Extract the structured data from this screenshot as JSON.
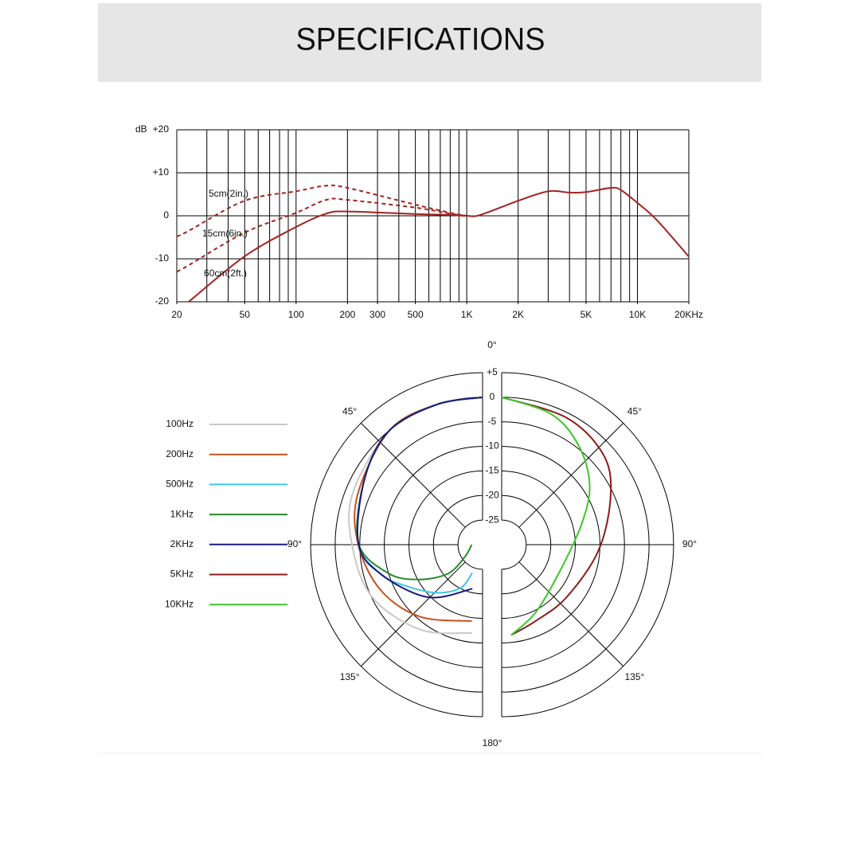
{
  "header": {
    "title": "SPECIFICATIONS"
  },
  "chart_data": [
    {
      "type": "line",
      "y_label": "dB",
      "xscale": "log",
      "x": [
        20,
        23.5,
        50,
        100,
        150,
        200,
        500,
        800,
        1000,
        1200,
        2000,
        3000,
        4000,
        5000,
        7000,
        8000,
        10000,
        13000,
        20000
      ],
      "series": [
        {
          "name": "5cm(2in.)",
          "color": "#a52222",
          "linestyle": "dashed",
          "values": [
            -4.8,
            -3.5,
            3.5,
            5.7,
            7,
            6.5,
            2.6,
            0.7,
            0,
            null,
            null,
            null,
            null,
            null,
            null,
            null,
            null,
            null,
            null
          ]
        },
        {
          "name": "15cm(6in.)",
          "color": "#a52222",
          "linestyle": "dashed",
          "values": [
            -13,
            -11.5,
            -3.9,
            0.7,
            3.7,
            3.7,
            1.9,
            0.5,
            0,
            null,
            null,
            null,
            null,
            null,
            null,
            null,
            null,
            null,
            null
          ]
        },
        {
          "name": "60cm(2ft.)",
          "color": "#a52222",
          "linestyle": "solid",
          "values": [
            null,
            -20,
            -9.4,
            -2.6,
            0.5,
            1,
            0.4,
            0.2,
            0,
            0.2,
            3.5,
            5.7,
            5.4,
            5.5,
            6.5,
            6,
            3,
            -1,
            -9.5
          ]
        }
      ],
      "xlim": [
        20,
        20000
      ],
      "ylim": [
        -20,
        20
      ],
      "xticks": [
        20,
        50,
        100,
        200,
        300,
        500,
        {
          "value": 1000,
          "label": "1K"
        },
        {
          "value": 2000,
          "label": "2K"
        },
        {
          "value": 5000,
          "label": "5K"
        },
        {
          "value": 10000,
          "label": "10K"
        },
        {
          "value": 20000,
          "label": "20KHz"
        }
      ],
      "xgrid": [
        20,
        30,
        40,
        50,
        60,
        70,
        80,
        90,
        100,
        200,
        300,
        400,
        500,
        600,
        700,
        800,
        900,
        1000,
        2000,
        3000,
        4000,
        5000,
        6000,
        7000,
        8000,
        9000,
        10000,
        20000
      ],
      "yticks": [
        {
          "value": 20,
          "label": "+20"
        },
        {
          "value": 10,
          "label": "+10"
        },
        0,
        -10,
        -20
      ],
      "grid": true
    },
    {
      "type": "polar",
      "legend": "left",
      "rlim": [
        -30,
        5
      ],
      "rticks": [
        {
          "value": 5,
          "label": "+5"
        },
        0,
        -5,
        -10,
        -15,
        -20,
        -25
      ],
      "thetaticks": [
        {
          "value": 0,
          "label": "0°"
        },
        {
          "value": -45,
          "label": "45°"
        },
        {
          "value": 45,
          "label": "45°"
        },
        {
          "value": -90,
          "label": "90°"
        },
        {
          "value": 90,
          "label": "90°"
        },
        {
          "value": -135,
          "label": "135°"
        },
        {
          "value": 135,
          "label": "135°"
        },
        {
          "value": 180,
          "label": "180°"
        }
      ],
      "series": [
        {
          "name": "100Hz",
          "color": "#c8c8c8",
          "theta": [
            0,
            -18,
            -39,
            -69,
            -92,
            -116,
            -144,
            -173
          ],
          "values": [
            0,
            0,
            0,
            -1.6,
            -3.6,
            -5.2,
            -8.6,
            -11.9
          ]
        },
        {
          "name": "200Hz",
          "color": "#c8501e",
          "theta": [
            0,
            -18,
            -39,
            -68,
            -90,
            -114,
            -139,
            -172
          ],
          "values": [
            0,
            0,
            0,
            -2.6,
            -4.7,
            -7.3,
            -10.6,
            -14.3
          ]
        },
        {
          "name": "500Hz",
          "color": "#3cc8e6",
          "theta": [
            0,
            -18,
            -39,
            -60,
            -89,
            -106,
            -118,
            -136,
            -153,
            -160
          ],
          "values": [
            0,
            0,
            0,
            -2.4,
            -4.7,
            -8.4,
            -12.2,
            -16.4,
            -20.1,
            -23.9
          ]
        },
        {
          "name": "1KHz",
          "color": "#2a8a2a",
          "theta": [
            0,
            -18,
            -39,
            -60,
            -89,
            -107,
            -119,
            -130,
            -125,
            -90
          ],
          "values": [
            0,
            0,
            0,
            -2.4,
            -4.7,
            -10,
            -15.4,
            -20.9,
            -25.5,
            -27.8
          ]
        },
        {
          "name": "2KHz",
          "color": "#1a1a80",
          "theta": [
            0,
            -18,
            -39,
            -60,
            -89,
            -106,
            -134,
            -167
          ],
          "values": [
            0,
            0,
            0,
            -2.4,
            -4.7,
            -8.4,
            -14.6,
            -20.8
          ]
        },
        {
          "name": "5KHz",
          "color": "#8b1a1a",
          "theta": [
            0,
            27,
            48,
            65,
            93,
            129,
            156,
            174
          ],
          "values": [
            0,
            -1,
            -2.3,
            -5.5,
            -10.2,
            -13,
            -13,
            -11.5
          ]
        },
        {
          "name": "10KHz",
          "color": "#3cc828",
          "theta": [
            0,
            21,
            38,
            56,
            76,
            117,
            154,
            174
          ],
          "values": [
            0,
            -1.6,
            -4.5,
            -8.4,
            -13.3,
            -17,
            -14.5,
            -11.5
          ]
        }
      ]
    }
  ]
}
